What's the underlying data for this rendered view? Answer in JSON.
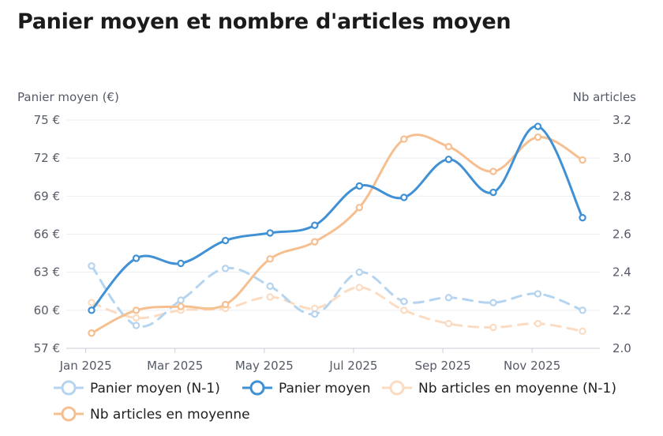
{
  "title": "Panier moyen et nombre d'articles moyen",
  "chart_data": {
    "type": "line",
    "x": [
      "2025-01",
      "2025-02",
      "2025-03",
      "2025-04",
      "2025-05",
      "2025-06",
      "2025-07",
      "2025-08",
      "2025-09",
      "2025-10",
      "2025-11",
      "2025-12"
    ],
    "x_tick_labels": [
      "Jan 2025",
      "Mar 2025",
      "May 2025",
      "Jul 2025",
      "Sep 2025",
      "Nov 2025"
    ],
    "x_tick_values": [
      "2025-01",
      "2025-03",
      "2025-05",
      "2025-07",
      "2025-09",
      "2025-11"
    ],
    "y_left": {
      "label": "Panier moyen (€)",
      "range": [
        57,
        75
      ],
      "ticks": [
        "75 €",
        "72 €",
        "69 €",
        "66 €",
        "63 €",
        "60 €",
        "57 €"
      ],
      "tick_values": [
        75,
        72,
        69,
        66,
        63,
        60,
        57
      ]
    },
    "y_right": {
      "label": "Nb articles",
      "range": [
        2.0,
        3.2
      ],
      "ticks": [
        "3.2",
        "3.0",
        "2.8",
        "2.6",
        "2.4",
        "2.2",
        "2.0"
      ],
      "tick_values": [
        3.2,
        3.0,
        2.8,
        2.6,
        2.4,
        2.2,
        2.0
      ]
    },
    "grid": true,
    "legend_position": "bottom",
    "series": [
      {
        "name": "Panier moyen (N-1)",
        "axis": "left",
        "color": "#b5d4ef",
        "dashed": true,
        "values": [
          63.5,
          58.8,
          60.8,
          63.3,
          61.9,
          59.7,
          63.0,
          60.7,
          61.0,
          60.6,
          61.3,
          60.0
        ]
      },
      {
        "name": "Panier moyen",
        "axis": "left",
        "color": "#3f90d4",
        "dashed": false,
        "values": [
          60.0,
          64.1,
          63.7,
          65.5,
          66.1,
          66.7,
          69.8,
          68.9,
          71.9,
          69.3,
          74.5,
          67.3
        ]
      },
      {
        "name": "Nb articles en moyenne (N-1)",
        "axis": "right",
        "color": "#fbdcc2",
        "dashed": true,
        "values": [
          2.24,
          2.16,
          2.2,
          2.21,
          2.27,
          2.21,
          2.32,
          2.2,
          2.13,
          2.11,
          2.13,
          2.09
        ]
      },
      {
        "name": "Nb articles en moyenne",
        "axis": "right",
        "color": "#f6bf90",
        "dashed": false,
        "values": [
          2.08,
          2.2,
          2.22,
          2.23,
          2.47,
          2.56,
          2.74,
          3.1,
          3.06,
          2.93,
          3.11,
          2.99
        ]
      }
    ]
  }
}
